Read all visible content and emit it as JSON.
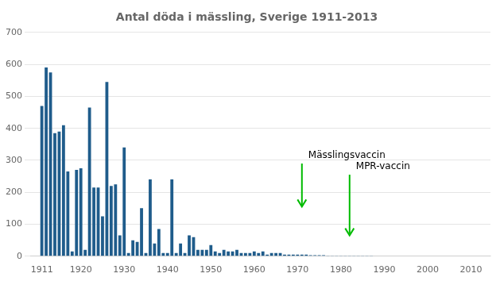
{
  "chart_data": {
    "type": "bar",
    "title": "Antal döda i mässling, Sverige 1911-2013",
    "color": "#1F5C8B",
    "x": [
      1911,
      1912,
      1913,
      1914,
      1915,
      1916,
      1917,
      1918,
      1919,
      1920,
      1921,
      1922,
      1923,
      1924,
      1925,
      1926,
      1927,
      1928,
      1929,
      1930,
      1931,
      1932,
      1933,
      1934,
      1935,
      1936,
      1937,
      1938,
      1939,
      1940,
      1941,
      1942,
      1943,
      1944,
      1945,
      1946,
      1947,
      1948,
      1949,
      1950,
      1951,
      1952,
      1953,
      1954,
      1955,
      1956,
      1957,
      1958,
      1959,
      1960,
      1961,
      1962,
      1963,
      1964,
      1965,
      1966,
      1967,
      1968,
      1969,
      1970,
      1971,
      1972,
      1973,
      1974,
      1975,
      1976,
      1977,
      1978,
      1979,
      1980,
      1981,
      1982,
      1983,
      1984,
      1985,
      1986,
      1987,
      1988,
      1989,
      1990,
      1991,
      1992,
      1993,
      1994,
      1995,
      1996,
      1997,
      1998,
      1999,
      2000,
      2001,
      2002,
      2003,
      2004,
      2005,
      2006,
      2007,
      2008,
      2009,
      2010,
      2011,
      2012,
      2013
    ],
    "values": [
      470,
      590,
      575,
      385,
      390,
      410,
      265,
      15,
      270,
      275,
      20,
      465,
      215,
      215,
      125,
      545,
      220,
      225,
      65,
      340,
      10,
      50,
      45,
      150,
      10,
      240,
      40,
      85,
      10,
      10,
      240,
      10,
      40,
      10,
      65,
      60,
      20,
      20,
      20,
      35,
      15,
      10,
      20,
      15,
      15,
      20,
      10,
      10,
      10,
      15,
      10,
      15,
      5,
      10,
      10,
      10,
      5,
      5,
      5,
      5,
      5,
      5,
      3,
      3,
      3,
      3,
      2,
      2,
      2,
      2,
      2,
      2,
      1,
      1,
      1,
      1,
      1,
      0,
      0,
      0,
      0,
      0,
      0,
      0,
      0,
      0,
      0,
      0,
      0,
      0,
      0,
      0,
      0,
      0,
      0,
      0,
      0,
      0,
      0,
      0,
      0,
      0,
      0
    ],
    "xlim": [
      1908.5,
      2014.5
    ],
    "xticks": [
      1911,
      1920,
      1930,
      1940,
      1950,
      1960,
      1970,
      1980,
      1990,
      2000,
      2010
    ],
    "ylim": [
      0,
      700
    ],
    "yticks": [
      0,
      100,
      200,
      300,
      400,
      500,
      600,
      700
    ],
    "grid": true,
    "annotations": [
      {
        "text": "Mässlingsvaccin",
        "x": 1971,
        "y_start": 290,
        "y_end": 155,
        "color": "#00BB00"
      },
      {
        "text": "MPR-vaccin",
        "x": 1982,
        "y_start": 255,
        "y_end": 65,
        "color": "#00BB00"
      }
    ]
  }
}
